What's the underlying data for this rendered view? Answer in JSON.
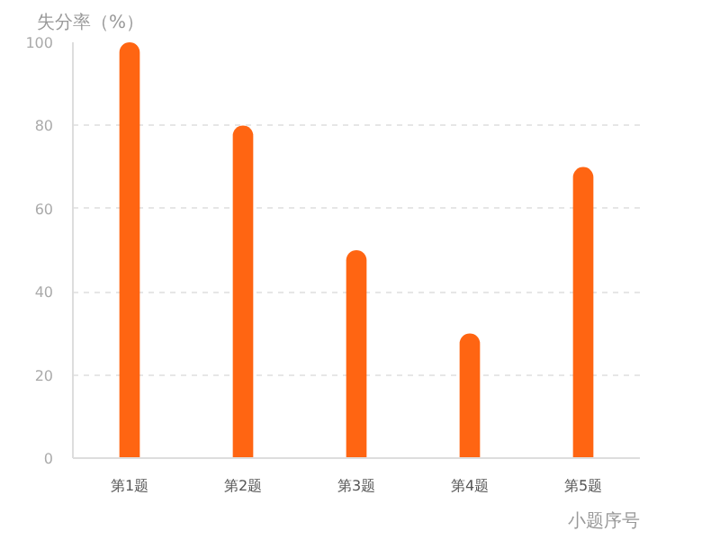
{
  "chart_data": {
    "type": "bar",
    "xlabel": "小题序号",
    "ylabel": "失分率（%）",
    "categories": [
      "第1题",
      "第2题",
      "第3题",
      "第4题",
      "第5题"
    ],
    "values": [
      100,
      80,
      50,
      30,
      70
    ],
    "color": "#ff6512",
    "ylim": [
      0,
      100
    ],
    "yticks": [
      0,
      20,
      40,
      60,
      80,
      100
    ],
    "grid": "y"
  }
}
